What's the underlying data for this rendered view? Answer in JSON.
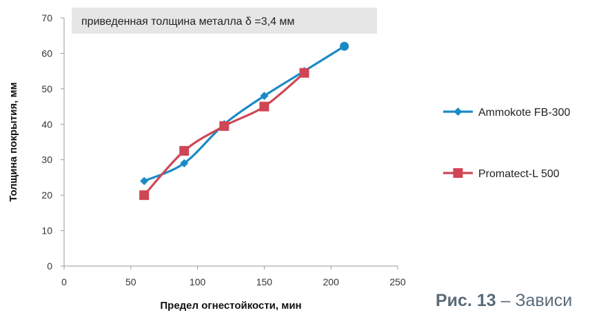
{
  "chart_data": {
    "type": "line",
    "annotation": "приведенная толщина металла δ =3,4 мм",
    "xlabel": "Предел огнестойкости, мин",
    "ylabel": "Толщина покрытия, мм",
    "xlim": [
      0,
      250
    ],
    "ylim": [
      0,
      70
    ],
    "x_ticks": [
      "0",
      "50",
      "100",
      "150",
      "200",
      "250"
    ],
    "y_ticks": [
      "0",
      "10",
      "20",
      "30",
      "40",
      "50",
      "60",
      "70"
    ],
    "grid": false,
    "legend_position": "right",
    "series": [
      {
        "name": "Ammokote FB-300",
        "color": "#1a8ac6",
        "marker": "diamond",
        "x": [
          60,
          90,
          120,
          150,
          180,
          210
        ],
        "y": [
          24,
          29,
          40,
          48,
          55,
          62
        ]
      },
      {
        "name": "Promatect-L 500",
        "color": "#cf4655",
        "marker": "square",
        "x": [
          60,
          90,
          120,
          150,
          180
        ],
        "y": [
          20,
          32.5,
          39.5,
          45,
          54.5
        ]
      }
    ]
  },
  "caption": {
    "label": "Рис. 13",
    "text": " – Зависи"
  }
}
